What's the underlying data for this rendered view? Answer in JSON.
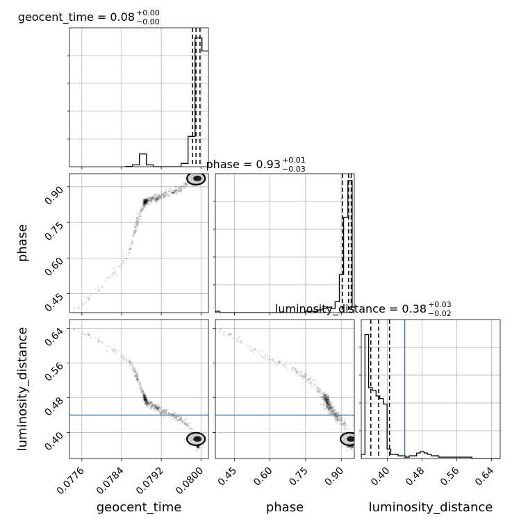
{
  "chart_data": {
    "type": "corner",
    "parameters": [
      {
        "key": "geocent_time",
        "label": "geocent_time",
        "range": [
          0.07735,
          0.08015
        ],
        "ticks": [
          0.0776,
          0.0784,
          0.0792,
          0.08
        ],
        "tick_labels": [
          "0.0776",
          "0.0784",
          "0.0792",
          "0.0800"
        ]
      },
      {
        "key": "phase",
        "label": "phase",
        "range": [
          0.37,
          0.955
        ],
        "ticks": [
          0.45,
          0.6,
          0.75,
          0.9
        ],
        "tick_labels": [
          "0.45",
          "0.60",
          "0.75",
          "0.90"
        ]
      },
      {
        "key": "luminosity_distance",
        "label": "luminosity_distance",
        "range": [
          0.34,
          0.66
        ],
        "ticks": [
          0.4,
          0.48,
          0.56,
          0.64
        ],
        "tick_labels": [
          "0.40",
          "0.48",
          "0.56",
          "0.64"
        ]
      }
    ],
    "titles": [
      {
        "base": "geocent_time = 0.08",
        "plus": "+0.00",
        "minus": "−0.00"
      },
      {
        "base": "phase = 0.93",
        "plus": "+0.01",
        "minus": "−0.03"
      },
      {
        "base": "luminosity_distance = 0.38",
        "plus": "+0.03",
        "minus": "−0.02"
      }
    ],
    "histograms": [
      {
        "param": "geocent_time",
        "bin_width": 0.00014,
        "bins": [
          [
            0.07848,
            0.002
          ],
          [
            0.07862,
            0.014
          ],
          [
            0.07876,
            0.094
          ],
          [
            0.0789,
            0.014
          ],
          [
            0.07904,
            0.0
          ],
          [
            0.07918,
            0.0
          ],
          [
            0.07932,
            0.0
          ],
          [
            0.07946,
            0.0
          ],
          [
            0.0796,
            0.024
          ],
          [
            0.07974,
            0.223
          ],
          [
            0.07988,
            0.945
          ],
          [
            0.08002,
            0.85
          ],
          [
            0.08016,
            0.024
          ]
        ],
        "quantiles": [
          0.07983,
          0.0799,
          0.07998
        ]
      },
      {
        "param": "phase",
        "bin_width": 0.018,
        "bins": [
          [
            0.37,
            0.01
          ],
          [
            0.388,
            0.0
          ],
          [
            0.406,
            0.0
          ],
          [
            0.424,
            0.0
          ],
          [
            0.442,
            0.0
          ],
          [
            0.46,
            0.0
          ],
          [
            0.478,
            0.0
          ],
          [
            0.496,
            0.0
          ],
          [
            0.514,
            0.0
          ],
          [
            0.532,
            0.0
          ],
          [
            0.55,
            0.0
          ],
          [
            0.568,
            0.0
          ],
          [
            0.586,
            0.0
          ],
          [
            0.604,
            0.0
          ],
          [
            0.622,
            0.0
          ],
          [
            0.64,
            0.0
          ],
          [
            0.658,
            0.0
          ],
          [
            0.676,
            0.0
          ],
          [
            0.694,
            0.0
          ],
          [
            0.712,
            0.0
          ],
          [
            0.73,
            0.0
          ],
          [
            0.748,
            0.01
          ],
          [
            0.766,
            0.01
          ],
          [
            0.784,
            0.01
          ],
          [
            0.802,
            0.02
          ],
          [
            0.82,
            0.03
          ],
          [
            0.838,
            0.04
          ],
          [
            0.856,
            0.03
          ],
          [
            0.874,
            0.08
          ],
          [
            0.892,
            0.28
          ],
          [
            0.91,
            0.7
          ],
          [
            0.928,
            0.97
          ],
          [
            0.946,
            0.04
          ]
        ],
        "quantiles": [
          0.905,
          0.931,
          0.942
        ]
      },
      {
        "param": "luminosity_distance",
        "bin_width": 0.0085,
        "bins": [
          [
            0.34,
            0.03
          ],
          [
            0.3485,
            0.91
          ],
          [
            0.357,
            0.52
          ],
          [
            0.3655,
            0.5
          ],
          [
            0.374,
            0.46
          ],
          [
            0.3825,
            0.44
          ],
          [
            0.391,
            0.4
          ],
          [
            0.3995,
            0.07
          ],
          [
            0.408,
            0.03
          ],
          [
            0.4165,
            0.03
          ],
          [
            0.425,
            0.02
          ],
          [
            0.4335,
            0.02
          ],
          [
            0.442,
            0.01
          ],
          [
            0.4505,
            0.02
          ],
          [
            0.459,
            0.02
          ],
          [
            0.4675,
            0.04
          ],
          [
            0.476,
            0.05
          ],
          [
            0.4845,
            0.04
          ],
          [
            0.493,
            0.03
          ],
          [
            0.5015,
            0.02
          ],
          [
            0.51,
            0.02
          ],
          [
            0.5185,
            0.01
          ],
          [
            0.527,
            0.01
          ],
          [
            0.5355,
            0.01
          ],
          [
            0.544,
            0.01
          ],
          [
            0.5525,
            0.01
          ],
          [
            0.561,
            0.01
          ],
          [
            0.5695,
            0.01
          ],
          [
            0.578,
            0.01
          ],
          [
            0.5865,
            0.01
          ],
          [
            0.595,
            0.0
          ],
          [
            0.6035,
            0.0
          ],
          [
            0.612,
            0.0
          ],
          [
            0.6205,
            0.0
          ],
          [
            0.629,
            0.0
          ],
          [
            0.6375,
            0.0
          ],
          [
            0.646,
            0.0
          ],
          [
            0.6545,
            0.0
          ]
        ],
        "quantiles": [
          0.362,
          0.38,
          0.405
        ]
      }
    ],
    "truth_lines": [
      {
        "param": "luminosity_distance",
        "value": 0.44,
        "color": "#4682b4"
      }
    ],
    "scatter_trend": [
      {
        "t": 0.07745,
        "p": 0.38,
        "d": 0.64
      },
      {
        "t": 0.0781,
        "p": 0.5,
        "d": 0.6
      },
      {
        "t": 0.07855,
        "p": 0.62,
        "d": 0.565
      },
      {
        "t": 0.07865,
        "p": 0.7,
        "d": 0.545
      },
      {
        "t": 0.07872,
        "p": 0.76,
        "d": 0.525
      },
      {
        "t": 0.0788,
        "p": 0.8,
        "d": 0.5
      },
      {
        "t": 0.07885,
        "p": 0.83,
        "d": 0.485
      },
      {
        "t": 0.0789,
        "p": 0.84,
        "d": 0.47
      },
      {
        "t": 0.0792,
        "p": 0.86,
        "d": 0.45
      },
      {
        "t": 0.0796,
        "p": 0.89,
        "d": 0.43
      },
      {
        "t": 0.0798,
        "p": 0.92,
        "d": 0.41
      },
      {
        "t": 0.0799,
        "p": 0.935,
        "d": 0.385
      },
      {
        "t": 0.07995,
        "p": 0.94,
        "d": 0.37
      }
    ],
    "hist_bin_color": "#000000",
    "point_color": "#000000",
    "grid": true
  }
}
